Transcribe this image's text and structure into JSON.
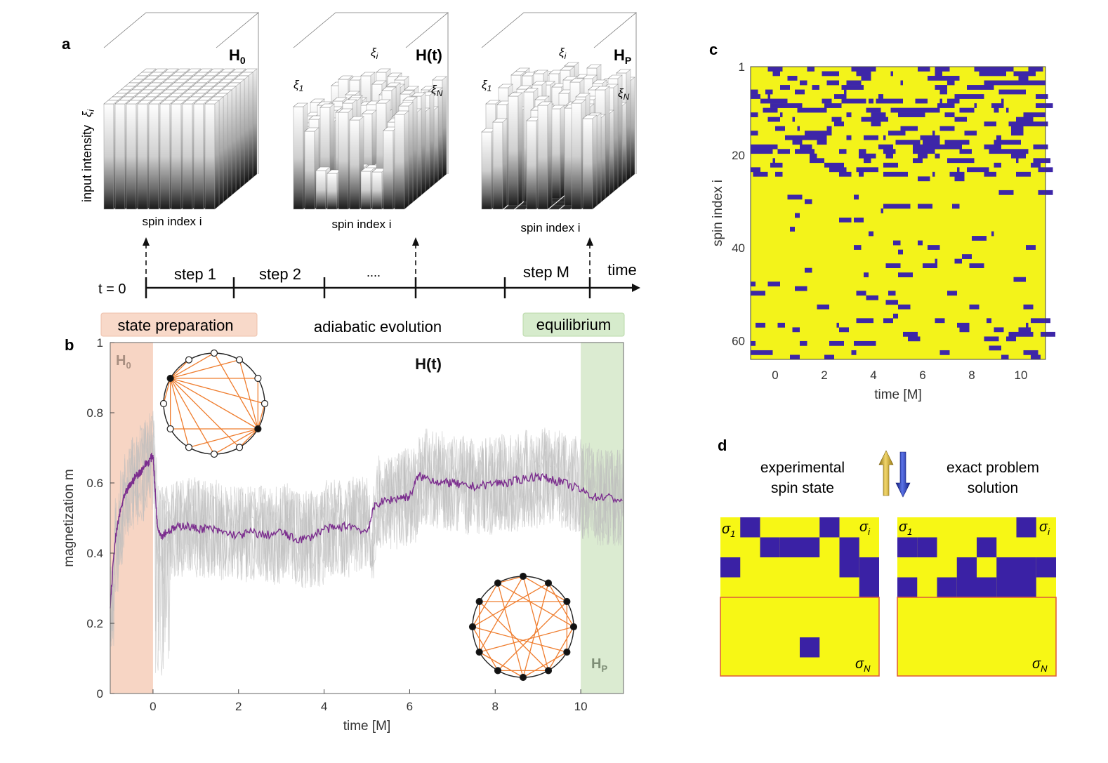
{
  "panels": {
    "a": {
      "letter": "a",
      "ylabel_text": "input intensity",
      "ylabel_symbol": "ξ",
      "ylabel_sub": "i",
      "towers": [
        {
          "title": "H",
          "sub": "0",
          "xlabel": "spin index i",
          "level": "uniform"
        },
        {
          "title": "H(t)",
          "sub": "",
          "xlabel": "spin index i",
          "level": "intermediate",
          "labels": [
            {
              "sym": "ξ",
              "sub": "1"
            },
            {
              "sym": "ξ",
              "sub": "i"
            },
            {
              "sym": "ξ",
              "sub": "N"
            }
          ]
        },
        {
          "title": "H",
          "sub": "P",
          "xlabel": "spin index i",
          "level": "problem",
          "labels": [
            {
              "sym": "ξ",
              "sub": "1"
            },
            {
              "sym": "ξ",
              "sub": "i"
            },
            {
              "sym": "ξ",
              "sub": "N"
            }
          ]
        }
      ],
      "timeline": {
        "start": "t = 0",
        "steps": [
          "step 1",
          "step 2",
          "....",
          "step M"
        ],
        "end": "time"
      },
      "phases": {
        "prep": "state preparation",
        "adiabatic": "adiabatic evolution",
        "equil": "equilibrium"
      }
    },
    "b": {
      "letter": "b",
      "h0_label": {
        "main": "H",
        "sub": "0"
      },
      "ht_label": "H(t)",
      "hp_label": {
        "main": "H",
        "sub": "P"
      }
    },
    "c": {
      "letter": "c"
    },
    "d": {
      "letter": "d",
      "left_title": [
        "experimental",
        "spin state"
      ],
      "right_title": [
        "exact problem",
        "solution"
      ],
      "sigma_1": {
        "sym": "σ",
        "sub": "1"
      },
      "sigma_i": {
        "sym": "σ",
        "sub": "i"
      },
      "sigma_N": {
        "sym": "σ",
        "sub": "N"
      }
    }
  },
  "chart_data": [
    {
      "id": "b",
      "type": "line",
      "xlabel": "time [M]",
      "ylabel": "magnetization m",
      "xlim": [
        -1,
        11
      ],
      "ylim": [
        0,
        1
      ],
      "xticks": [
        0,
        2,
        4,
        6,
        8,
        10
      ],
      "yticks": [
        0,
        0.2,
        0.4,
        0.6,
        0.8,
        1
      ],
      "ytick_labels": [
        "0",
        "0.2",
        "0.4",
        "0.6",
        "0.8",
        "1"
      ],
      "series": [
        {
          "x": [
            -1.0,
            -0.9,
            -0.8,
            -0.7,
            -0.6,
            -0.5,
            -0.4,
            -0.3,
            -0.2,
            -0.1,
            0.0,
            0.05,
            0.1,
            0.2,
            0.3,
            0.5,
            0.7,
            1.0,
            1.3,
            1.6,
            2.0,
            2.3,
            2.6,
            3.0,
            3.3,
            3.6,
            4.0,
            4.3,
            4.6,
            5.0,
            5.2,
            5.5,
            5.8,
            6.0,
            6.2,
            6.5,
            6.8,
            7.0,
            7.3,
            7.6,
            8.0,
            8.3,
            8.6,
            9.0,
            9.3,
            9.6,
            10.0,
            10.3,
            10.6,
            11.0
          ],
          "y": [
            0.25,
            0.42,
            0.5,
            0.55,
            0.58,
            0.6,
            0.62,
            0.63,
            0.65,
            0.66,
            0.68,
            0.58,
            0.48,
            0.45,
            0.46,
            0.47,
            0.48,
            0.47,
            0.47,
            0.46,
            0.45,
            0.46,
            0.45,
            0.46,
            0.44,
            0.44,
            0.47,
            0.47,
            0.48,
            0.46,
            0.54,
            0.55,
            0.56,
            0.56,
            0.62,
            0.61,
            0.6,
            0.6,
            0.59,
            0.59,
            0.6,
            0.6,
            0.61,
            0.62,
            0.61,
            0.6,
            0.58,
            0.56,
            0.56,
            0.55
          ],
          "color": "#7b2d8e"
        }
      ],
      "shaded_regions": [
        {
          "from": -1,
          "to": 0,
          "color": "#f4c7b0"
        },
        {
          "from": 10,
          "to": 11,
          "color": "#cfe4c2"
        }
      ]
    },
    {
      "id": "c",
      "type": "heatmap",
      "xlabel": "time [M]",
      "ylabel": "spin index i",
      "xlim": [
        -1,
        11
      ],
      "ylim": [
        1,
        64
      ],
      "xticks": [
        0,
        2,
        4,
        6,
        8,
        10
      ],
      "yticks": [
        1,
        20,
        40,
        60
      ],
      "colors": {
        "up": "#f3f31a",
        "down": "#3d26a8"
      }
    }
  ],
  "colors": {
    "yellow": "#f7f715",
    "blue": "#3a21a5",
    "orange": "#ef7d2e",
    "purple": "#7b2d8e"
  }
}
